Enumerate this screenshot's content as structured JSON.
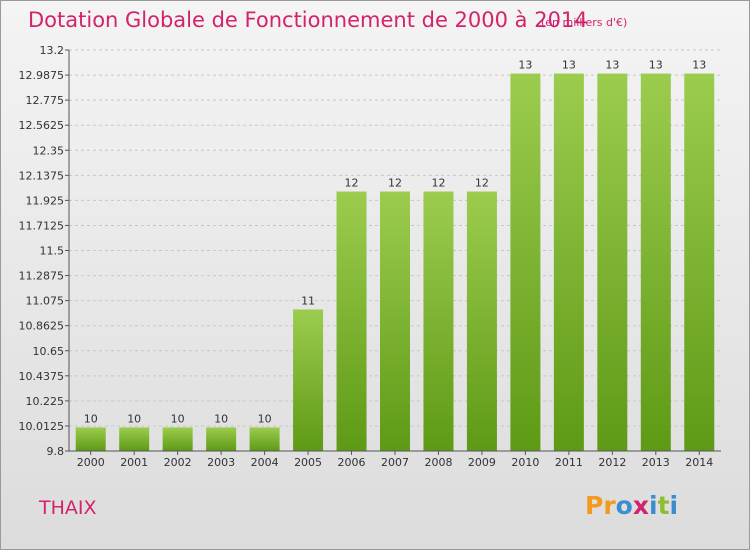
{
  "header": {
    "title": "Dotation Globale de Fonctionnement de 2000 à 2014",
    "unit": "(en milliers d'€)"
  },
  "footer": {
    "commune": "THAIX",
    "logo_letters": [
      "P",
      "r",
      "o",
      "x",
      "i",
      "t",
      "i"
    ]
  },
  "colors": {
    "title": "#d2236c",
    "bar_top": "#9ccc4e",
    "bar_bottom": "#5e9a16",
    "logo": [
      "#f29a1d",
      "#f29a1d",
      "#3c8dd0",
      "#d2236c",
      "#3c8dd0",
      "#8bbf2f",
      "#3c8dd0"
    ]
  },
  "chart_data": {
    "type": "bar",
    "categories": [
      "2000",
      "2001",
      "2002",
      "2003",
      "2004",
      "2005",
      "2006",
      "2007",
      "2008",
      "2009",
      "2010",
      "2011",
      "2012",
      "2013",
      "2014"
    ],
    "values": [
      10,
      10,
      10,
      10,
      10,
      11,
      12,
      12,
      12,
      12,
      13,
      13,
      13,
      13,
      13
    ],
    "data_labels": [
      "10",
      "10",
      "10",
      "10",
      "10",
      "11",
      "12",
      "12",
      "12",
      "12",
      "13",
      "13",
      "13",
      "13",
      "13"
    ],
    "y_ticks": [
      "9.8",
      "10.0125",
      "10.225",
      "10.4375",
      "10.65",
      "10.8625",
      "11.075",
      "11.2875",
      "11.5",
      "11.7125",
      "11.925",
      "12.1375",
      "12.35",
      "12.5625",
      "12.775",
      "12.9875",
      "13.2"
    ],
    "ylim": [
      9.8,
      13.2
    ],
    "grid": true
  }
}
